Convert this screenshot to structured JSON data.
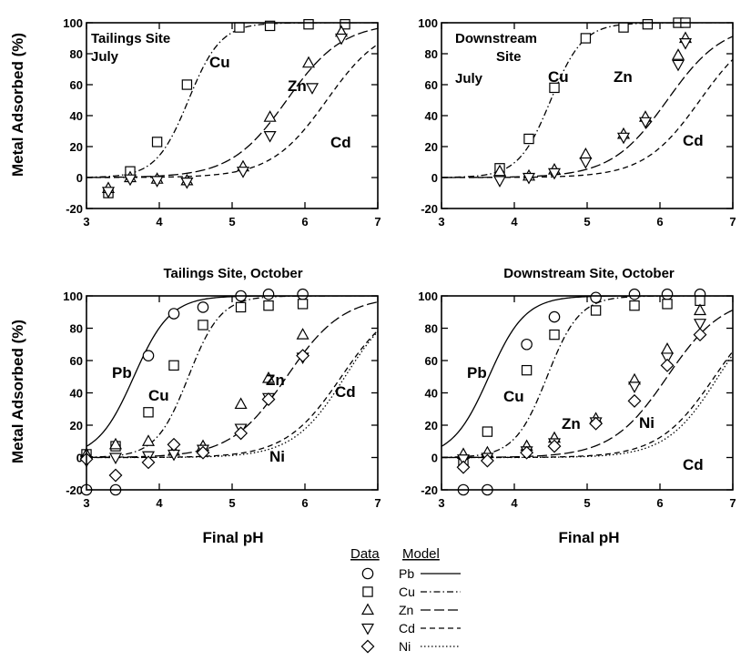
{
  "figure": {
    "ylabel_top": "Metal Adsorbed (%)",
    "ylabel_bottom": "Metal Adsorbed (%)",
    "xlabel_left": "Final pH",
    "xlabel_right": "Final pH"
  },
  "legend": {
    "data_header": "Data",
    "model_header": "Model",
    "entries": [
      {
        "metal": "Pb",
        "marker": "circle",
        "line": "solid"
      },
      {
        "metal": "Cu",
        "marker": "square",
        "line": "dash-dot"
      },
      {
        "metal": "Zn",
        "marker": "triangle-up",
        "line": "long-dash"
      },
      {
        "metal": "Cd",
        "marker": "triangle-down",
        "line": "dash"
      },
      {
        "metal": "Ni",
        "marker": "diamond",
        "line": "dotted"
      }
    ]
  },
  "chart_data": [
    {
      "type": "scatter",
      "panel": "top-left",
      "title": "",
      "annotations": [
        "Tailings Site",
        "July"
      ],
      "xlim": [
        3,
        7
      ],
      "ylim": [
        -20,
        100
      ],
      "xticks": [
        3,
        4,
        5,
        6,
        7
      ],
      "yticks": [
        -20,
        0,
        20,
        40,
        60,
        80,
        100
      ],
      "series": [
        {
          "name": "Cu",
          "marker": "square",
          "points": [
            [
              3.3,
              -10
            ],
            [
              3.6,
              4
            ],
            [
              3.97,
              23
            ],
            [
              4.38,
              60
            ],
            [
              5.1,
              97
            ],
            [
              5.52,
              98
            ],
            [
              6.05,
              99
            ],
            [
              6.55,
              99
            ]
          ],
          "model": {
            "pH50": 4.4,
            "k": 4.5
          }
        },
        {
          "name": "Zn",
          "marker": "triangle-up",
          "points": [
            [
              3.3,
              -7
            ],
            [
              3.6,
              0
            ],
            [
              3.97,
              -1
            ],
            [
              4.38,
              -2
            ],
            [
              5.15,
              7
            ],
            [
              5.52,
              39
            ],
            [
              6.05,
              74
            ],
            [
              6.5,
              94
            ]
          ],
          "model": {
            "pH50": 5.75,
            "k": 2.6
          }
        },
        {
          "name": "Cd",
          "marker": "triangle-down",
          "points": [
            [
              3.3,
              -9
            ],
            [
              3.6,
              -1
            ],
            [
              3.97,
              -2
            ],
            [
              4.38,
              -3
            ],
            [
              5.15,
              4
            ],
            [
              5.52,
              27
            ],
            [
              6.1,
              58
            ],
            [
              6.5,
              90
            ]
          ],
          "model": {
            "pH50": 6.3,
            "k": 2.6
          }
        }
      ],
      "curve_labels": [
        "Cu",
        "Zn",
        "Cd"
      ]
    },
    {
      "type": "scatter",
      "panel": "top-right",
      "title": "",
      "annotations": [
        "Downstream",
        "Site",
        "July"
      ],
      "xlim": [
        3,
        7
      ],
      "ylim": [
        -20,
        100
      ],
      "xticks": [
        3,
        4,
        5,
        6,
        7
      ],
      "yticks": [
        -20,
        0,
        20,
        40,
        60,
        80,
        100
      ],
      "series": [
        {
          "name": "Cu",
          "marker": "square",
          "points": [
            [
              3.8,
              6
            ],
            [
              4.2,
              25
            ],
            [
              4.55,
              58
            ],
            [
              4.98,
              90
            ],
            [
              5.5,
              97
            ],
            [
              5.83,
              99
            ],
            [
              6.25,
              100
            ],
            [
              6.35,
              100
            ]
          ],
          "model": {
            "pH50": 4.5,
            "k": 4.5
          }
        },
        {
          "name": "Zn",
          "marker": "triangle-up",
          "points": [
            [
              3.8,
              4
            ],
            [
              4.2,
              1
            ],
            [
              4.55,
              5
            ],
            [
              4.98,
              15
            ],
            [
              5.5,
              28
            ],
            [
              5.8,
              39
            ],
            [
              6.25,
              79
            ],
            [
              6.35,
              90
            ]
          ],
          "model": {
            "pH50": 6.1,
            "k": 2.6
          }
        },
        {
          "name": "Cd",
          "marker": "triangle-down",
          "points": [
            [
              3.8,
              -2
            ],
            [
              4.2,
              0
            ],
            [
              4.55,
              3
            ],
            [
              4.98,
              10
            ],
            [
              5.5,
              26
            ],
            [
              5.8,
              36
            ],
            [
              6.25,
              73
            ],
            [
              6.35,
              87
            ]
          ],
          "model": {
            "pH50": 6.55,
            "k": 2.6
          }
        }
      ],
      "curve_labels": [
        "Cu",
        "Zn",
        "Cd"
      ]
    },
    {
      "type": "scatter",
      "panel": "bottom-left",
      "title": "Tailings Site, October",
      "annotations": [],
      "xlim": [
        3,
        7
      ],
      "ylim": [
        -20,
        100
      ],
      "xticks": [
        3,
        4,
        5,
        6,
        7
      ],
      "yticks": [
        -20,
        0,
        20,
        40,
        60,
        80,
        100
      ],
      "series": [
        {
          "name": "Pb",
          "marker": "circle",
          "points": [
            [
              3.0,
              -20
            ],
            [
              3.4,
              -20
            ],
            [
              3.85,
              63
            ],
            [
              4.2,
              89
            ],
            [
              4.6,
              93
            ],
            [
              5.12,
              100
            ],
            [
              5.5,
              101
            ],
            [
              5.97,
              101
            ]
          ],
          "model": {
            "pH50": 3.65,
            "k": 4.0
          }
        },
        {
          "name": "Cu",
          "marker": "square",
          "points": [
            [
              3.0,
              2
            ],
            [
              3.4,
              7
            ],
            [
              3.85,
              28
            ],
            [
              4.2,
              57
            ],
            [
              4.6,
              82
            ],
            [
              5.12,
              93
            ],
            [
              5.5,
              94
            ],
            [
              5.97,
              95
            ]
          ],
          "model": {
            "pH50": 4.4,
            "k": 4.5
          }
        },
        {
          "name": "Zn",
          "marker": "triangle-up",
          "points": [
            [
              3.0,
              2
            ],
            [
              3.4,
              8
            ],
            [
              3.85,
              10
            ],
            [
              4.2,
              4
            ],
            [
              4.6,
              7
            ],
            [
              5.12,
              33
            ],
            [
              5.5,
              49
            ],
            [
              5.97,
              76
            ]
          ],
          "model": {
            "pH50": 5.75,
            "k": 2.6
          }
        },
        {
          "name": "Cd",
          "marker": "triangle-down",
          "points": [
            [
              3.0,
              -2
            ],
            [
              3.4,
              0
            ],
            [
              3.85,
              1
            ],
            [
              4.2,
              2
            ],
            [
              4.6,
              5
            ],
            [
              5.12,
              18
            ],
            [
              5.5,
              37
            ],
            [
              5.97,
              62
            ]
          ],
          "model": {
            "pH50": 6.5,
            "k": 2.6
          }
        },
        {
          "name": "Ni",
          "marker": "diamond",
          "points": [
            [
              3.0,
              -1
            ],
            [
              3.4,
              -11
            ],
            [
              3.85,
              -3
            ],
            [
              4.2,
              8
            ],
            [
              4.6,
              3
            ],
            [
              5.12,
              15
            ],
            [
              5.5,
              36
            ],
            [
              5.97,
              63
            ]
          ],
          "model": {
            "pH50": 6.55,
            "k": 2.8
          }
        }
      ],
      "curve_labels": [
        "Pb",
        "Cu",
        "Zn",
        "Ni",
        "Cd"
      ]
    },
    {
      "type": "scatter",
      "panel": "bottom-right",
      "title": "Downstream Site, October",
      "annotations": [],
      "xlim": [
        3,
        7
      ],
      "ylim": [
        -20,
        100
      ],
      "xticks": [
        3,
        4,
        5,
        6,
        7
      ],
      "yticks": [
        -20,
        0,
        20,
        40,
        60,
        80,
        100
      ],
      "series": [
        {
          "name": "Pb",
          "marker": "circle",
          "points": [
            [
              3.3,
              -20
            ],
            [
              3.63,
              -20
            ],
            [
              4.17,
              70
            ],
            [
              4.55,
              87
            ],
            [
              5.12,
              99
            ],
            [
              5.65,
              101
            ],
            [
              6.1,
              101
            ],
            [
              6.55,
              101
            ]
          ],
          "model": {
            "pH50": 3.65,
            "k": 4.0
          }
        },
        {
          "name": "Cu",
          "marker": "square",
          "points": [
            [
              3.3,
              -4
            ],
            [
              3.63,
              16
            ],
            [
              4.17,
              54
            ],
            [
              4.55,
              76
            ],
            [
              5.12,
              91
            ],
            [
              5.65,
              94
            ],
            [
              6.1,
              95
            ],
            [
              6.55,
              97
            ]
          ],
          "model": {
            "pH50": 4.45,
            "k": 4.5
          }
        },
        {
          "name": "Zn",
          "marker": "triangle-up",
          "points": [
            [
              3.3,
              2
            ],
            [
              3.63,
              3
            ],
            [
              4.17,
              7
            ],
            [
              4.55,
              12
            ],
            [
              5.12,
              24
            ],
            [
              5.65,
              48
            ],
            [
              6.1,
              67
            ],
            [
              6.55,
              91
            ]
          ],
          "model": {
            "pH50": 6.1,
            "k": 2.6
          }
        },
        {
          "name": "Cd",
          "marker": "triangle-down",
          "points": [
            [
              3.3,
              -1
            ],
            [
              3.63,
              0
            ],
            [
              4.17,
              4
            ],
            [
              4.55,
              9
            ],
            [
              5.12,
              22
            ],
            [
              5.65,
              44
            ],
            [
              6.1,
              62
            ],
            [
              6.55,
              83
            ]
          ],
          "model": {
            "pH50": 6.75,
            "k": 2.6
          }
        },
        {
          "name": "Ni",
          "marker": "diamond",
          "points": [
            [
              3.3,
              -6
            ],
            [
              3.63,
              -2
            ],
            [
              4.17,
              3
            ],
            [
              4.55,
              7
            ],
            [
              5.12,
              21
            ],
            [
              5.65,
              35
            ],
            [
              6.1,
              57
            ],
            [
              6.55,
              76
            ]
          ],
          "model": {
            "pH50": 6.8,
            "k": 2.8
          }
        }
      ],
      "curve_labels": [
        "Pb",
        "Cu",
        "Zn",
        "Ni",
        "Cd"
      ]
    }
  ]
}
